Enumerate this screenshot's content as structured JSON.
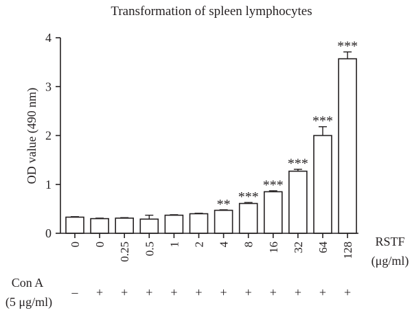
{
  "chart_data": {
    "type": "bar",
    "title": "Transformation of spleen lymphocytes",
    "ylabel": "OD value (490 nm)",
    "xlabel_line1": "RSTF",
    "xlabel_line2": "(μg/ml)",
    "ylim": [
      0,
      4
    ],
    "yticks": [
      "0",
      "1",
      "2",
      "3",
      "4"
    ],
    "categories": [
      "0",
      "0",
      "0.25",
      "0.5",
      "1",
      "2",
      "4",
      "8",
      "16",
      "32",
      "64",
      "128"
    ],
    "values": [
      0.33,
      0.3,
      0.31,
      0.29,
      0.37,
      0.4,
      0.47,
      0.61,
      0.85,
      1.27,
      2.0,
      3.57
    ],
    "errors": [
      0.01,
      0.01,
      0.01,
      0.08,
      0.01,
      0.01,
      0.01,
      0.02,
      0.02,
      0.04,
      0.18,
      0.14
    ],
    "significance": [
      "",
      "",
      "",
      "",
      "",
      "",
      "**",
      "***",
      "***",
      "***",
      "***",
      "***"
    ],
    "grid": false,
    "legend": "none",
    "bar_color": "#ffffff",
    "line_color": "#231f20"
  },
  "con_a": {
    "label_line1": "Con A",
    "label_line2": "(5 μg/ml)",
    "values": [
      "–",
      "+",
      "+",
      "+",
      "+",
      "+",
      "+",
      "+",
      "+",
      "+",
      "+",
      "+"
    ]
  }
}
